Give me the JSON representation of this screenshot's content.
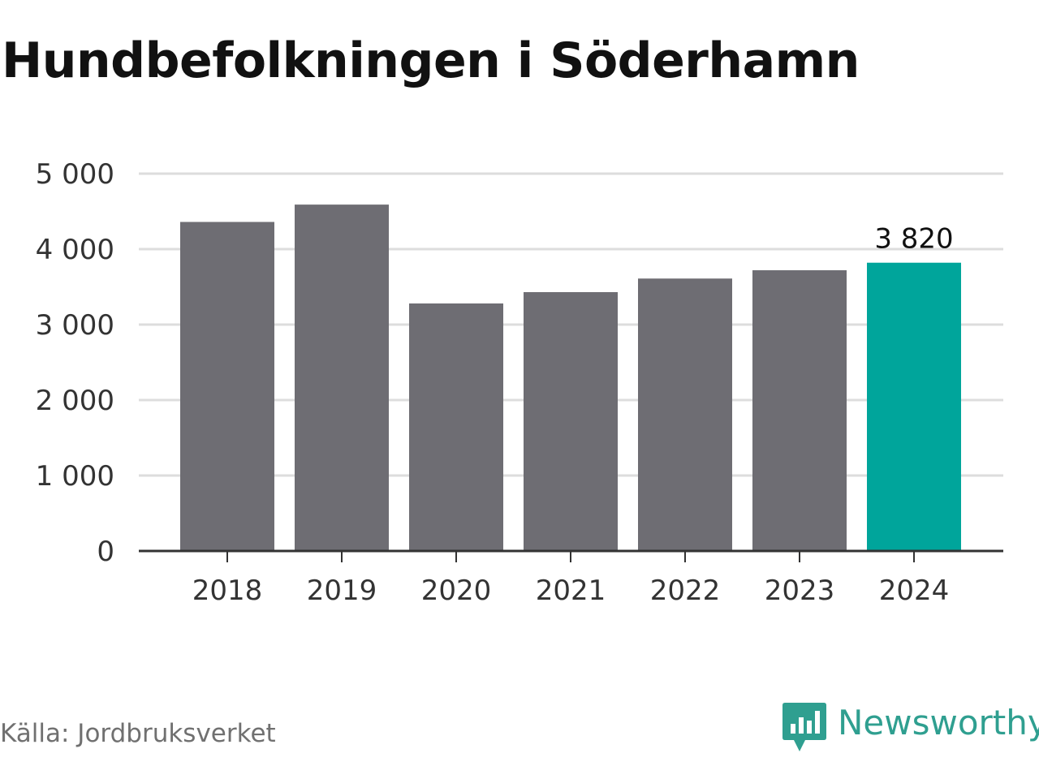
{
  "title": "Hundbefolkningen i Söderhamn",
  "source": "Källa: Jordbruksverket",
  "brand": {
    "name": "Newsworthy",
    "icon": "chart-bubble-icon",
    "color": "#2f9f90"
  },
  "chart_data": {
    "type": "bar",
    "categories": [
      "2018",
      "2019",
      "2020",
      "2021",
      "2022",
      "2023",
      "2024"
    ],
    "values": [
      4360,
      4590,
      3280,
      3430,
      3610,
      3720,
      3820
    ],
    "ylim": [
      0,
      5000
    ],
    "yticks": [
      0,
      1000,
      2000,
      3000,
      4000,
      5000
    ],
    "ytick_labels": [
      "0",
      "1 000",
      "2 000",
      "3 000",
      "4 000",
      "5 000"
    ],
    "highlight_index": 6,
    "highlight_label": "3 820",
    "colors": {
      "bar": "#6e6d73",
      "highlight": "#00a59b",
      "grid": "#dddddd",
      "axis": "#333333"
    },
    "grid": true
  }
}
